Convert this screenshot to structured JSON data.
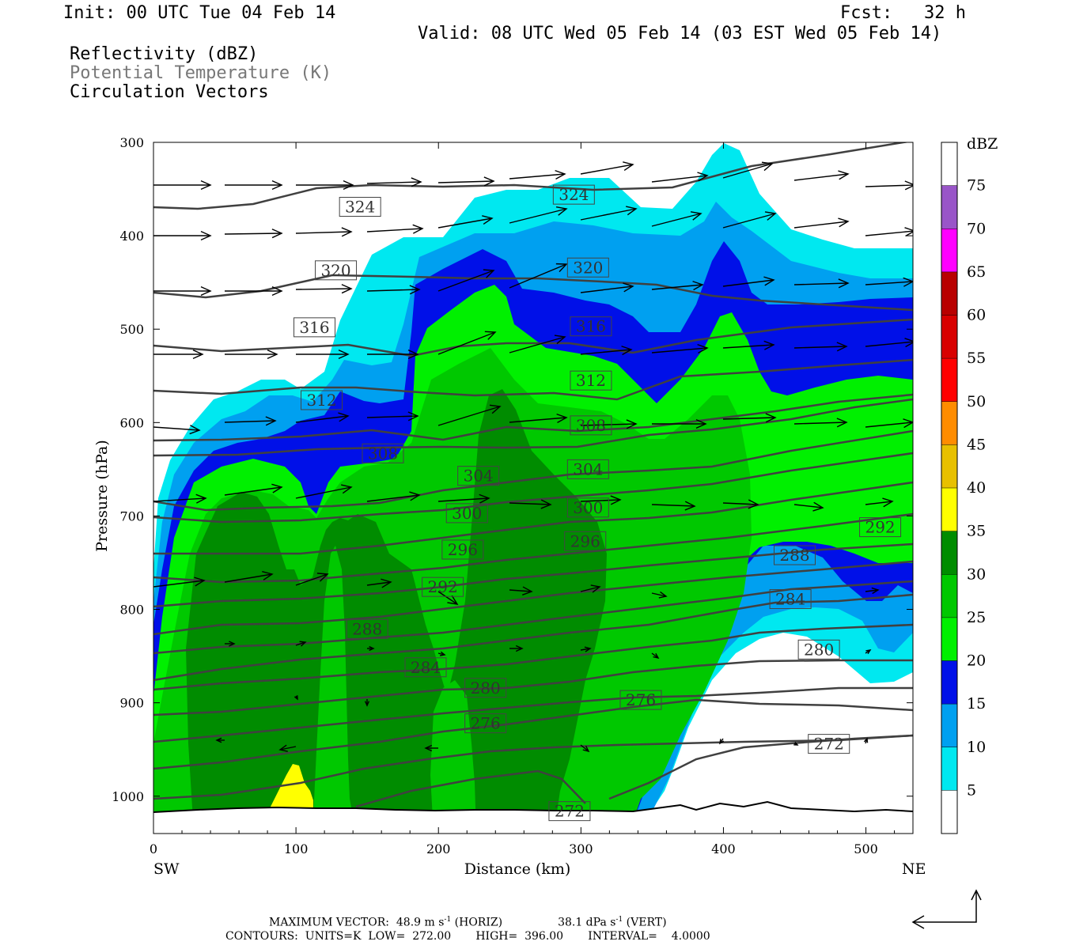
{
  "header": {
    "init": "Init: 00 UTC Tue 04 Feb 14",
    "fcst": "Fcst:   32 h",
    "valid": "Valid: 08 UTC Wed 05 Feb 14 (03 EST Wed 05 Feb 14)",
    "field1": "Reflectivity (dBZ)",
    "field2": "Potential Temperature (K)",
    "field3": "Circulation Vectors"
  },
  "footer": {
    "line1a": "MAXIMUM VECTOR:  48.9 m s",
    "line1b": " (HORIZ)",
    "line1c": "38.1 dPa s",
    "line1d": " (VERT)",
    "sup": "-1",
    "line2": "CONTOURS:  UNITS=K  LOW=  272.00       HIGH=  396.00       INTERVAL=    4.0000"
  },
  "colors": {
    "refl_levels": [
      "#00e8f0",
      "#00a0f0",
      "#0010e8",
      "#00f000",
      "#00c800",
      "#008c00",
      "#ffff00",
      "#e8c000",
      "#ff8c00",
      "#ff0000",
      "#d80000",
      "#b80000",
      "#ff00ff",
      "#9955c8"
    ],
    "theta_line": "#404040"
  },
  "chart_data": {
    "type": "cross-section",
    "xlabel": "Distance (km)",
    "ylabel": "Pressure (hPa)",
    "xlim": [
      0,
      533
    ],
    "ylim": [
      1040,
      300
    ],
    "x_ticks": [
      "0",
      "100",
      "200",
      "300",
      "400",
      "500"
    ],
    "y_ticks": [
      "300",
      "400",
      "500",
      "600",
      "700",
      "800",
      "900",
      "1000"
    ],
    "x_left_label": "SW",
    "x_right_label": "NE",
    "colorbar": {
      "unit": "dBZ",
      "levels": [
        "5",
        "10",
        "15",
        "20",
        "25",
        "30",
        "35",
        "40",
        "45",
        "50",
        "55",
        "60",
        "65",
        "70",
        "75"
      ]
    },
    "theta_labels": [
      {
        "v": "324",
        "x": 145,
        "p": 369
      },
      {
        "v": "324",
        "x": 295,
        "p": 356
      },
      {
        "v": "320",
        "x": 128,
        "p": 437
      },
      {
        "v": "320",
        "x": 305,
        "p": 434
      },
      {
        "v": "316",
        "x": 113,
        "p": 498
      },
      {
        "v": "316",
        "x": 307,
        "p": 497
      },
      {
        "v": "312",
        "x": 307,
        "p": 555
      },
      {
        "v": "312",
        "x": 118,
        "p": 576
      },
      {
        "v": "308",
        "x": 307,
        "p": 603
      },
      {
        "v": "308",
        "x": 161,
        "p": 633
      },
      {
        "v": "304",
        "x": 305,
        "p": 650
      },
      {
        "v": "304",
        "x": 228,
        "p": 657
      },
      {
        "v": "300",
        "x": 305,
        "p": 691
      },
      {
        "v": "300",
        "x": 220,
        "p": 697
      },
      {
        "v": "296",
        "x": 303,
        "p": 727
      },
      {
        "v": "296",
        "x": 217,
        "p": 736
      },
      {
        "v": "292",
        "x": 203,
        "p": 776
      },
      {
        "v": "292",
        "x": 510,
        "p": 712
      },
      {
        "v": "288",
        "x": 150,
        "p": 821
      },
      {
        "v": "288",
        "x": 450,
        "p": 742
      },
      {
        "v": "284",
        "x": 191,
        "p": 862
      },
      {
        "v": "284",
        "x": 447,
        "p": 789
      },
      {
        "v": "280",
        "x": 233,
        "p": 884
      },
      {
        "v": "280",
        "x": 467,
        "p": 843
      },
      {
        "v": "276",
        "x": 233,
        "p": 922
      },
      {
        "v": "276",
        "x": 342,
        "p": 897
      },
      {
        "v": "272",
        "x": 292,
        "p": 1016
      },
      {
        "v": "272",
        "x": 474,
        "p": 944
      }
    ]
  }
}
